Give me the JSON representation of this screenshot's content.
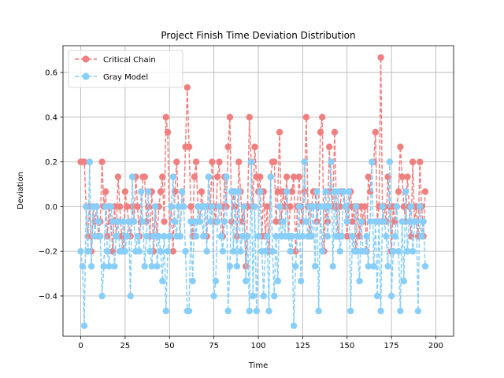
{
  "chart_data": {
    "type": "line",
    "title": "Project Finish Time Deviation Distribution",
    "xlabel": "Time",
    "ylabel": "Deviation",
    "xlim": [
      -10,
      210
    ],
    "ylim": [
      -0.58,
      0.72
    ],
    "xticks": [
      0,
      25,
      50,
      75,
      100,
      125,
      150,
      175,
      200
    ],
    "yticks": [
      -0.4,
      -0.2,
      0.0,
      0.2,
      0.4,
      0.6
    ],
    "xtick_labels": [
      "0",
      "25",
      "50",
      "75",
      "100",
      "125",
      "150",
      "175",
      "200"
    ],
    "ytick_labels": [
      "−0.4",
      "−0.2",
      "0.0",
      "0.2",
      "0.4",
      "0.6"
    ],
    "grid": true,
    "legend_position": "top-left",
    "series": [
      {
        "name": "Critical Chain",
        "color": "#f08080",
        "linestyle": "dashed",
        "marker": "circle",
        "values": [
          0.2,
          0.2,
          0.2,
          0.0,
          -0.133,
          0.0,
          -0.2,
          0.0,
          -0.067,
          0.0,
          -0.133,
          -0.067,
          0.2,
          0.0,
          0.067,
          -0.133,
          0.0,
          -0.067,
          -0.2,
          0.0,
          -0.133,
          0.133,
          0.0,
          -0.133,
          -0.2,
          0.067,
          0.0,
          -0.067,
          -0.133,
          0.0,
          -0.067,
          0.133,
          0.0,
          -0.133,
          -0.067,
          0.133,
          0.133,
          -0.067,
          0.0,
          -0.133,
          0.067,
          -0.2,
          0.0,
          -0.133,
          0.0,
          0.067,
          0.133,
          -0.067,
          0.4,
          0.333,
          -0.133,
          0.0,
          -0.2,
          0.067,
          0.2,
          0.0,
          -0.133,
          0.067,
          0.0,
          0.267,
          0.533,
          0.267,
          0.0,
          -0.133,
          0.133,
          0.2,
          0.0,
          -0.067,
          0.067,
          0.0,
          0.0,
          -0.133,
          0.133,
          0.0,
          0.2,
          0.0,
          -0.067,
          0.133,
          0.2,
          0.0,
          -0.133,
          0.133,
          0.0,
          0.267,
          0.4,
          -0.067,
          0.067,
          0.0,
          -0.133,
          0.2,
          0.067,
          -0.067,
          0.0,
          -0.267,
          0.0,
          0.4,
          0.2,
          0.0,
          0.267,
          0.133,
          0.067,
          0.133,
          -0.133,
          0.067,
          -0.133,
          0.0,
          -0.2,
          0.133,
          0.2,
          0.2,
          -0.067,
          0.067,
          0.333,
          -0.067,
          0.067,
          0.0,
          0.133,
          -0.133,
          0.0,
          0.067,
          0.133,
          -0.2,
          0.0,
          0.133,
          0.0,
          -0.067,
          0.067,
          0.4,
          0.0,
          -0.133,
          0.0,
          0.067,
          0.067,
          -0.067,
          0.0,
          0.333,
          0.4,
          -0.2,
          0.0,
          -0.067,
          0.267,
          0.067,
          0.0,
          0.333,
          0.0,
          -0.133,
          0.0,
          0.067,
          0.067,
          0.0,
          -0.133,
          0.0,
          0.067,
          -0.067,
          0.0,
          -0.2,
          0.0,
          -0.133,
          0.0,
          -0.067,
          0.0,
          -0.2,
          0.133,
          0.067,
          0.2,
          0.2,
          0.333,
          -0.067,
          0.0,
          0.667,
          -0.067,
          0.0,
          -0.067,
          0.133,
          0.0,
          -0.2,
          0.0,
          -0.067,
          0.0,
          0.067,
          0.267,
          0.133,
          0.0,
          -0.067,
          0.133,
          0.0,
          -0.133,
          0.2,
          -0.067,
          0.0,
          -0.133,
          0.2,
          0.0,
          -0.133,
          0.067
        ]
      },
      {
        "name": "Gray Model",
        "color": "#87cefa",
        "linestyle": "dashed",
        "marker": "circle",
        "values": [
          -0.2,
          -0.267,
          -0.533,
          0.0,
          -0.2,
          0.2,
          -0.267,
          0.0,
          -0.133,
          0.0,
          -0.067,
          -0.133,
          -0.4,
          -0.267,
          0.0,
          -0.2,
          -0.267,
          0.0,
          -0.067,
          -0.267,
          -0.133,
          -0.067,
          -0.2,
          -0.2,
          -0.067,
          -0.2,
          -0.133,
          -0.067,
          -0.4,
          0.133,
          -0.067,
          -0.2,
          -0.133,
          -0.2,
          0.067,
          -0.067,
          -0.267,
          -0.133,
          0.067,
          -0.2,
          -0.267,
          -0.133,
          0.0,
          -0.267,
          -0.133,
          -0.2,
          -0.333,
          -0.133,
          -0.467,
          -0.2,
          -0.133,
          0.0,
          0.133,
          -0.067,
          -0.133,
          0.0,
          -0.133,
          0.067,
          0.0,
          -0.2,
          -0.467,
          -0.467,
          -0.067,
          -0.333,
          -0.067,
          -0.133,
          0.0,
          -0.067,
          0.0,
          -0.133,
          0.0,
          -0.2,
          0.133,
          -0.067,
          0.0,
          -0.4,
          -0.333,
          -0.067,
          0.0,
          -0.133,
          -0.2,
          -0.067,
          0.133,
          -0.467,
          -0.267,
          0.067,
          -0.2,
          0.067,
          -0.267,
          0.067,
          -0.2,
          -0.133,
          0.0,
          -0.333,
          -0.133,
          -0.467,
          0.2,
          -0.4,
          0.0,
          -0.467,
          -0.133,
          0.067,
          -0.2,
          -0.4,
          -0.2,
          -0.133,
          -0.467,
          0.133,
          -0.2,
          -0.4,
          -0.133,
          -0.333,
          0.0,
          -0.133,
          -0.067,
          -0.133,
          0.067,
          -0.133,
          -0.2,
          -0.133,
          -0.533,
          -0.267,
          -0.133,
          0.0,
          -0.333,
          -0.133,
          0.2,
          -0.067,
          -0.133,
          0.0,
          -0.133,
          0.0,
          -0.267,
          0.067,
          -0.467,
          0.0,
          -0.2,
          0.0,
          0.067,
          -0.133,
          0.0,
          0.2,
          -0.267,
          0.067,
          -0.133,
          0.067,
          -0.2,
          -0.133,
          0.067,
          0.0,
          -0.067,
          0.067,
          -0.467,
          -0.133,
          -0.2,
          0.0,
          -0.2,
          -0.333,
          -0.067,
          -0.2,
          -0.2,
          -0.133,
          -0.267,
          -0.067,
          0.2,
          -0.267,
          -0.067,
          -0.4,
          -0.067,
          -0.467,
          0.0,
          -0.067,
          -0.133,
          -0.267,
          0.2,
          -0.4,
          -0.2,
          -0.133,
          0.0,
          -0.2,
          -0.467,
          -0.067,
          -0.333,
          0.067,
          -0.2,
          -0.067,
          0.0,
          -0.2,
          -0.067,
          -0.067,
          -0.467,
          0.0,
          -0.133,
          -0.067,
          -0.267
        ]
      }
    ]
  }
}
